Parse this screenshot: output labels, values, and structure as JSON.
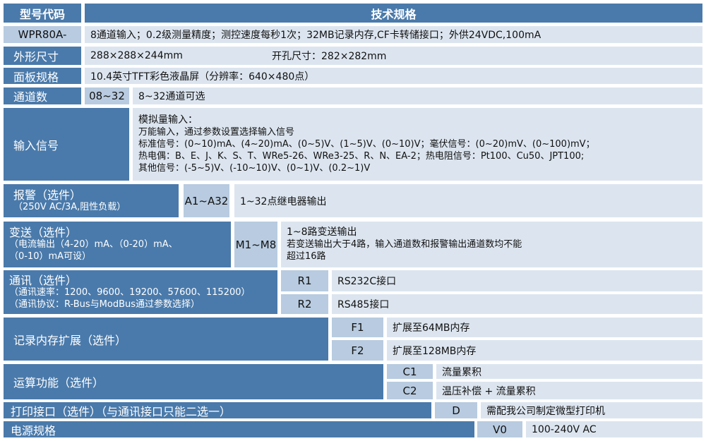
{
  "header": {
    "model_code": "型号代码",
    "spec": "技术规格"
  },
  "rows": {
    "model": {
      "code": "WPR80A-",
      "desc": "8通道输入；0.2级测量精度；测控速度每秒1次；32MB记录内存,CF卡转储接口；外供24VDC,100mA"
    },
    "size": {
      "label": "外形尺寸",
      "dims": "288×288×244mm",
      "cutout": "开孔尺寸：282×282mm"
    },
    "panel": {
      "label": "面板规格",
      "desc": "10.4英寸TFT彩色液晶屏（分辨率：640×480点）"
    },
    "channels": {
      "label": "通道数",
      "code": "08~32",
      "desc": "8~32通道可选"
    },
    "input": {
      "label": "输入信号",
      "lines": [
        "模拟量输入：",
        "万能输入，通过参数设置选择输入信号",
        "标准信号：(0~10)mA、(4~20)mA、(0~5)V、(1~5)V、(0~10)V；毫伏信号：(0~20)mV、(0~100)mV；",
        "热电偶：B、E、J、K、S、T、WRe5-26、WRe3-25、R、N、EA-2；热电阻信号：Pt100、Cu50、JPT100;",
        "其他信号：(-5~5)V、(-10~10)V、(0~1)V、(0.2~1)V"
      ]
    },
    "alarm": {
      "label": "报警（选件）",
      "sub": "（250V AC/3A,阻性负载）",
      "code": "A1~A32",
      "desc": "1~32点继电器输出"
    },
    "transmit": {
      "label": "变送（选件）",
      "sub1": "（电流输出（4-20）mA、（0-20）mA、",
      "sub2": "（0-10）mA可设）",
      "code": "M1~M8",
      "lines": [
        "1~8路变送输出",
        "若变送输出大于4路，输入通道数和报警输出通道数均不能",
        "超过16路"
      ]
    },
    "comm": {
      "label": "通讯（选件）",
      "sub1": "（通讯速率：1200、9600、19200、57600、115200）",
      "sub2": "（通讯协议：R-Bus与ModBus通过参数选择）",
      "options": [
        {
          "code": "R1",
          "desc": "RS232C接口"
        },
        {
          "code": "R2",
          "desc": "RS485接口"
        }
      ]
    },
    "memory": {
      "label": "记录内存扩展（选件）",
      "options": [
        {
          "code": "F1",
          "desc": "扩展至64MB内存"
        },
        {
          "code": "F2",
          "desc": "扩展至128MB内存"
        }
      ]
    },
    "calc": {
      "label": "运算功能（选件）",
      "options": [
        {
          "code": "C1",
          "desc": "流量累积"
        },
        {
          "code": "C2",
          "desc": "温压补偿 + 流量累积"
        }
      ]
    },
    "printer": {
      "label": "打印接口（选件）（与通讯接口只能二选一）",
      "code": "D",
      "desc": "需配我公司制定微型打印机"
    },
    "power": {
      "label": "电源规格",
      "code": "V0",
      "desc": "100-240V AC"
    }
  },
  "colors": {
    "header": "#4a7aab",
    "code": "#b8cbe0",
    "desc": "#dce5ef"
  }
}
